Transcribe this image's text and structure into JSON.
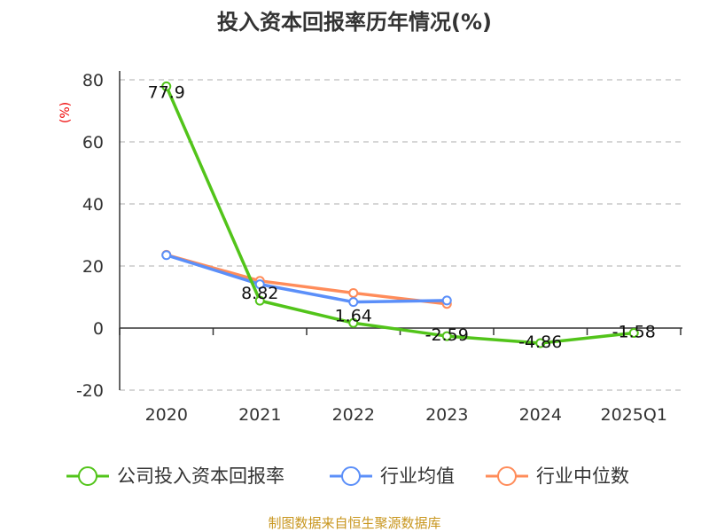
{
  "chart_data": {
    "type": "line",
    "title": "投入资本回报率历年情况(%)",
    "ylabel": "(%)",
    "xlabel": "",
    "categories": [
      "2020",
      "2021",
      "2022",
      "2023",
      "2024",
      "2025Q1"
    ],
    "ylim": [
      -20,
      80
    ],
    "yticks": [
      -20,
      0,
      20,
      40,
      60,
      80
    ],
    "grid": true,
    "legend_position": "bottom",
    "series": [
      {
        "name": "公司投入资本回报率",
        "color": "#52c41a",
        "values": [
          77.9,
          8.82,
          1.64,
          -2.59,
          -4.86,
          -1.58
        ],
        "labels": [
          "77.9",
          "8.82",
          "1.64",
          "-2.59",
          "-4.86",
          "-1.58"
        ]
      },
      {
        "name": "行业均值",
        "color": "#5b8ff9",
        "values": [
          23.5,
          14.1,
          8.4,
          8.9,
          null,
          null
        ]
      },
      {
        "name": "行业中位数",
        "color": "#ff8c5a",
        "values": [
          23.6,
          15.2,
          11.3,
          7.8,
          null,
          null
        ]
      }
    ],
    "source": "制图数据来自恒生聚源数据库"
  }
}
